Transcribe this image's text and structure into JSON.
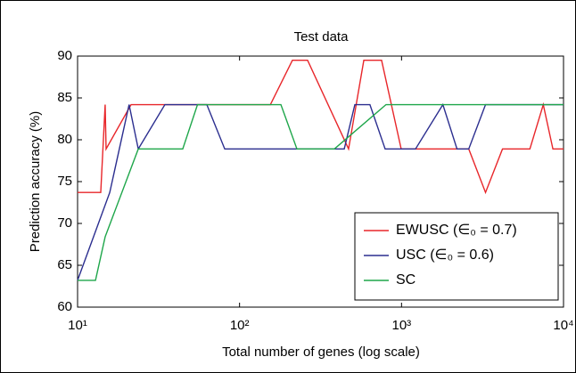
{
  "chart_data": {
    "type": "line",
    "title": "Test data",
    "x_label": "Total number of genes (log scale)",
    "y_label": "Prediction accuracy (%)",
    "x_log": true,
    "xlim": [
      10,
      10000
    ],
    "xticks": [
      {
        "value": 10,
        "label": "10¹"
      },
      {
        "value": 100,
        "label": "10²"
      },
      {
        "value": 1000,
        "label": "10³"
      },
      {
        "value": 10000,
        "label": "10⁴"
      }
    ],
    "ylim": [
      60,
      90
    ],
    "yticks": [
      60,
      65,
      70,
      75,
      80,
      85,
      90
    ],
    "grid": false,
    "legend_position": "lower right",
    "series": [
      {
        "name": "EWUSC (∈₀ = 0.7)",
        "color": "#e8262a",
        "x": [
          10,
          13.9,
          14.8,
          15,
          21.4,
          155,
          212,
          263,
          471,
          585,
          753,
          995,
          2600,
          3300,
          4200,
          6200,
          7500,
          8600,
          10000
        ],
        "values": [
          73.7,
          73.7,
          84.2,
          78.9,
          84.2,
          84.2,
          89.5,
          89.5,
          78.9,
          89.5,
          89.5,
          78.9,
          78.9,
          73.7,
          78.9,
          78.9,
          84.2,
          78.9,
          78.9
        ]
      },
      {
        "name": "USC (∈₀ = 0.6)",
        "color": "#2b2e8f",
        "x": [
          10,
          15.8,
          20.8,
          23.7,
          34.6,
          62.8,
          81,
          443,
          515,
          638,
          792,
          1220,
          1800,
          2200,
          2600,
          3300,
          10000
        ],
        "values": [
          63.2,
          73.7,
          84.2,
          78.9,
          84.2,
          84.2,
          78.9,
          78.9,
          84.2,
          84.2,
          78.9,
          78.9,
          84.2,
          78.9,
          78.9,
          84.2,
          84.2
        ]
      },
      {
        "name": "SC",
        "color": "#1ea64a",
        "x": [
          10,
          12.9,
          14.8,
          23.7,
          44.6,
          55,
          180,
          226,
          385,
          802,
          10000
        ],
        "values": [
          63.2,
          63.2,
          68.4,
          78.9,
          78.9,
          84.2,
          84.2,
          78.9,
          78.9,
          84.2,
          84.2
        ]
      }
    ]
  }
}
